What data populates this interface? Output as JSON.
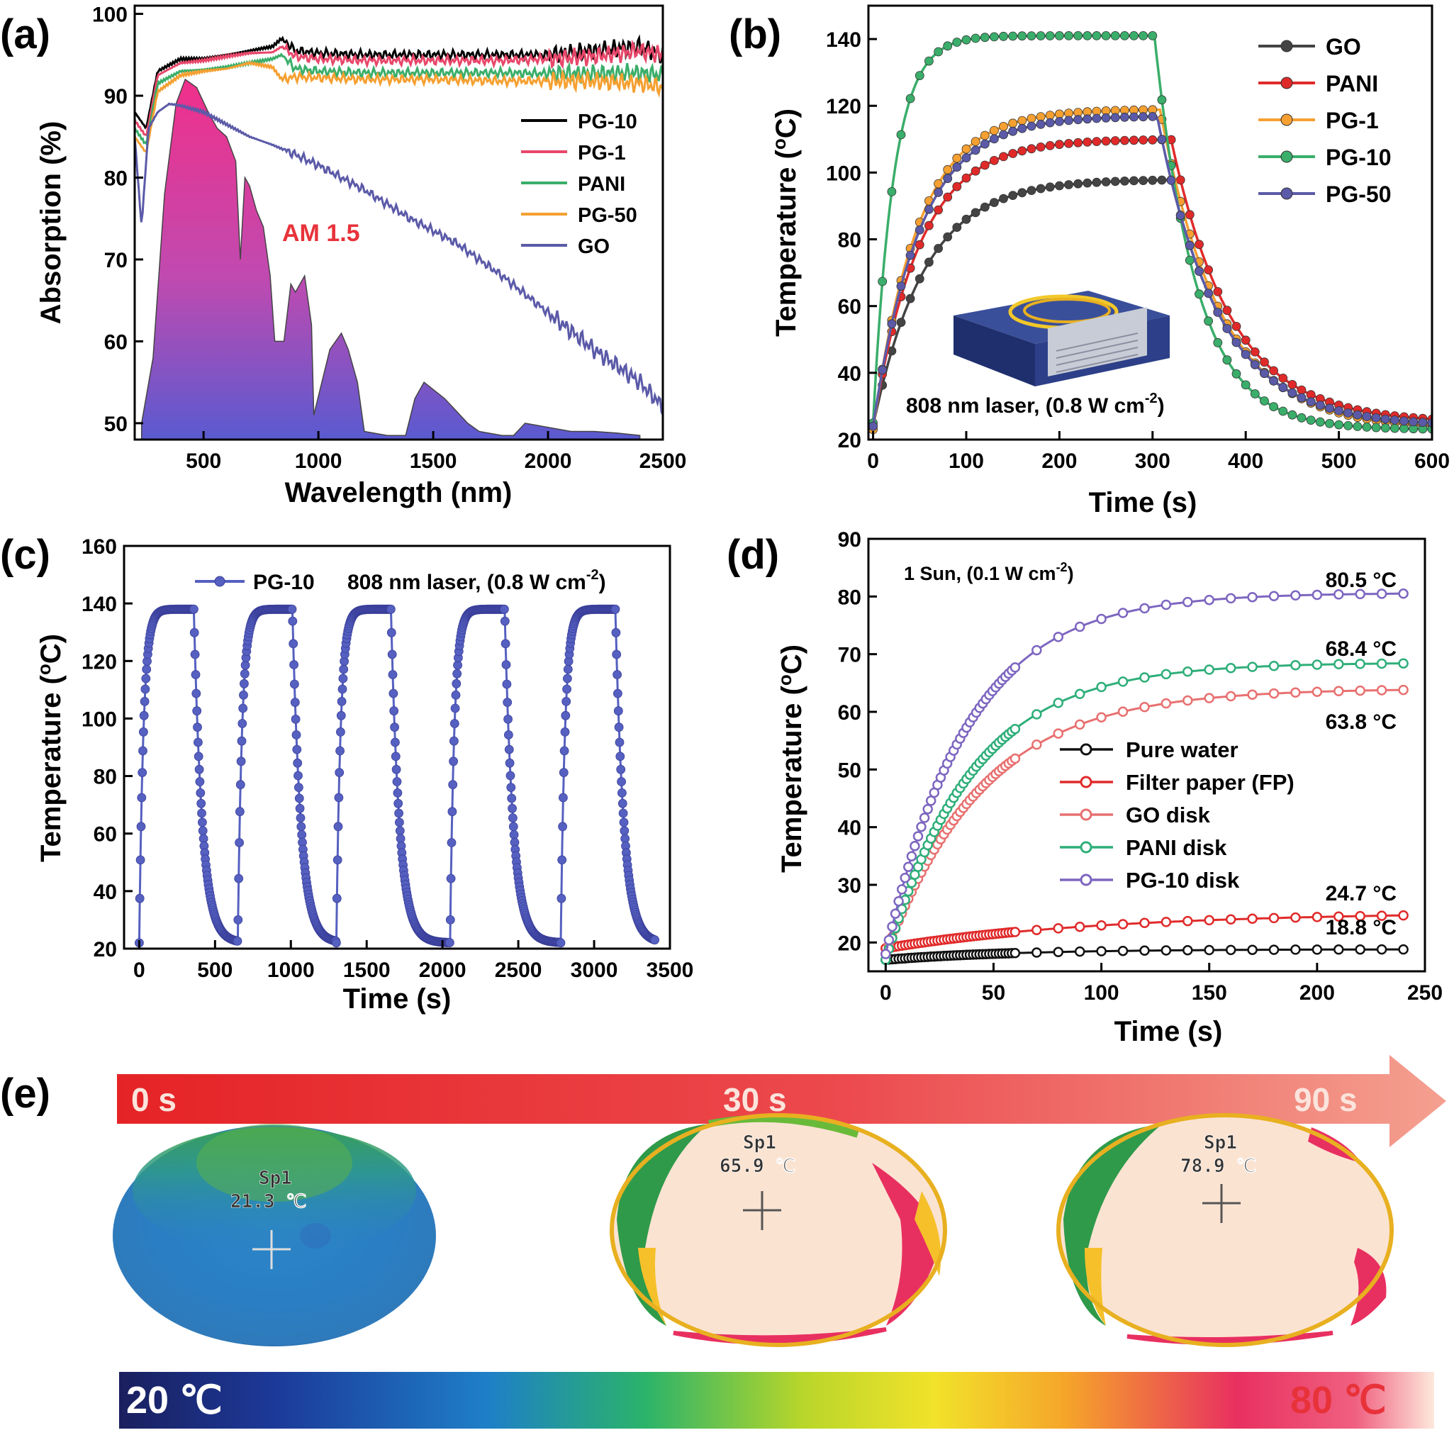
{
  "panels": {
    "a": {
      "label": "(a)"
    },
    "b": {
      "label": "(b)"
    },
    "c": {
      "label": "(c)"
    },
    "d": {
      "label": "(d)"
    },
    "e": {
      "label": "(e)"
    }
  },
  "chart_data": [
    {
      "id": "a",
      "type": "line",
      "xlabel": "Wavelength (nm)",
      "ylabel": "Absorption (%)",
      "xlim": [
        200,
        2500
      ],
      "ylim": [
        48,
        101
      ],
      "xticks": [
        500,
        1000,
        1500,
        2000,
        2500
      ],
      "yticks": [
        50,
        60,
        70,
        80,
        90,
        100
      ],
      "annotation": "AM 1.5",
      "legend_position": "right",
      "series": [
        {
          "name": "PG-10",
          "color": "#000000",
          "x": [
            200,
            250,
            300,
            400,
            500,
            600,
            700,
            800,
            840,
            900,
            1000,
            1200,
            1500,
            1800,
            2000,
            2200,
            2400,
            2500
          ],
          "y": [
            88,
            86,
            93,
            94.5,
            94.5,
            95,
            95.5,
            96,
            97,
            95.5,
            95.2,
            95.0,
            95.0,
            95.0,
            95.0,
            95.5,
            96,
            95
          ]
        },
        {
          "name": "PG-1",
          "color": "#e8476a",
          "x": [
            200,
            250,
            300,
            400,
            500,
            600,
            700,
            800,
            840,
            900,
            1000,
            1200,
            1500,
            1800,
            2000,
            2200,
            2400,
            2500
          ],
          "y": [
            87,
            85,
            92.5,
            94,
            94.3,
            94.8,
            95.2,
            95.3,
            96,
            94.8,
            94.5,
            94.3,
            94.3,
            94.3,
            94.5,
            94.8,
            95.5,
            95
          ]
        },
        {
          "name": "PANI",
          "color": "#3aae6a",
          "x": [
            200,
            250,
            300,
            400,
            500,
            600,
            700,
            800,
            840,
            900,
            1000,
            1200,
            1500,
            1800,
            2000,
            2200,
            2400,
            2500
          ],
          "y": [
            86,
            84,
            91.5,
            93,
            93.2,
            93.5,
            94,
            94.5,
            95,
            93.3,
            93,
            92.8,
            92.8,
            92.8,
            92.7,
            92.7,
            92.8,
            92.5
          ]
        },
        {
          "name": "PG-50",
          "color": "#f5a031",
          "x": [
            200,
            250,
            300,
            400,
            500,
            600,
            700,
            800,
            840,
            900,
            1000,
            1200,
            1500,
            1800,
            2000,
            2200,
            2400,
            2500
          ],
          "y": [
            85,
            83,
            90.5,
            92.5,
            93,
            93.3,
            94,
            93.5,
            92,
            92.3,
            92.2,
            92,
            92,
            91.8,
            91.8,
            91.8,
            91.5,
            91
          ]
        },
        {
          "name": "GO",
          "color": "#5b5aa8",
          "x": [
            200,
            230,
            260,
            300,
            350,
            400,
            500,
            600,
            700,
            800,
            900,
            1000,
            1200,
            1400,
            1600,
            1800,
            2000,
            2200,
            2400,
            2500
          ],
          "y": [
            85,
            74,
            86,
            88,
            89,
            88.8,
            88,
            86.5,
            85,
            84,
            82.8,
            81.5,
            78.5,
            75,
            72,
            68,
            63.5,
            59,
            55,
            52
          ]
        }
      ],
      "am15": {
        "x": [
          230,
          280,
          330,
          380,
          420,
          470,
          520,
          560,
          600,
          640,
          660,
          680,
          700,
          730,
          760,
          790,
          810,
          850,
          880,
          900,
          940,
          970,
          980,
          1050,
          1100,
          1130,
          1170,
          1200,
          1300,
          1380,
          1420,
          1460,
          1550,
          1650,
          1700,
          1800,
          1850,
          1900,
          2000,
          2100,
          2200,
          2300,
          2400
        ],
        "y": [
          50,
          58,
          78,
          89,
          92,
          91,
          88,
          86,
          85,
          82,
          70,
          80,
          79,
          76,
          74,
          68,
          60,
          60,
          67,
          66,
          68,
          62,
          51,
          59,
          61,
          59,
          55,
          49,
          48.5,
          48.5,
          53,
          55,
          53,
          50,
          49,
          48.5,
          48.5,
          50,
          49.5,
          49,
          49,
          48.8,
          48.5
        ]
      }
    },
    {
      "id": "b",
      "type": "line",
      "xlabel": "Time (s)",
      "ylabel": "Temperature (°C)",
      "xlim": [
        -5,
        600
      ],
      "ylim": [
        20,
        150
      ],
      "xticks": [
        0,
        100,
        200,
        300,
        400,
        500,
        600
      ],
      "yticks": [
        20,
        40,
        60,
        80,
        100,
        120,
        140
      ],
      "annotation": "808 nm laser, (0.8 W cm",
      "annotation_sup": "-2",
      "annotation_end": ")",
      "legend_position": "top-right",
      "series": [
        {
          "name": "GO",
          "color": "#444444",
          "base": 24,
          "max": 98,
          "tau": 55,
          "off": 320,
          "end": 24
        },
        {
          "name": "PANI",
          "color": "#e02a2a",
          "base": 24,
          "max": 110,
          "tau": 50,
          "off": 320,
          "end": 25
        },
        {
          "name": "PG-1",
          "color": "#f5a031",
          "base": 23,
          "max": 119,
          "tau": 48,
          "off": 308,
          "end": 23
        },
        {
          "name": "PG-10",
          "color": "#3aae6a",
          "base": 25,
          "max": 141,
          "tau": 22,
          "off": 302,
          "end": 23
        },
        {
          "name": "PG-50",
          "color": "#5b5aa8",
          "base": 24,
          "max": 117,
          "tau": 50,
          "off": 305,
          "end": 24
        }
      ]
    },
    {
      "id": "c",
      "type": "line",
      "xlabel": "Time (s)",
      "ylabel": "Temperature (°C)",
      "xlim": [
        -100,
        3500
      ],
      "ylim": [
        20,
        160
      ],
      "xticks": [
        0,
        500,
        1000,
        1500,
        2000,
        2500,
        3000,
        3500
      ],
      "yticks": [
        20,
        40,
        60,
        80,
        100,
        120,
        140,
        160
      ],
      "legend_position": "top",
      "series": [
        {
          "name": "PG-10",
          "color": "#5560c0",
          "cycle_starts": [
            0,
            650,
            1300,
            2050,
            2780
          ],
          "on_duration": 360,
          "peak": 138,
          "base": 22
        }
      ],
      "annotation": "808 nm laser, (0.8 W cm",
      "annotation_sup": "-2",
      "annotation_end": ")"
    },
    {
      "id": "d",
      "type": "line",
      "xlabel": "Time (s)",
      "ylabel": "Temperature (°C)",
      "xlim": [
        -8,
        250
      ],
      "ylim": [
        15,
        90
      ],
      "xticks": [
        0,
        50,
        100,
        150,
        200,
        250
      ],
      "yticks": [
        20,
        30,
        40,
        50,
        60,
        70,
        80,
        90
      ],
      "annotation": "1 Sun, (0.1 W cm",
      "annotation_sup": "-2",
      "annotation_end": ")",
      "legend_position": "center-right",
      "series": [
        {
          "name": "Pure water",
          "color": "#111111",
          "start": 17,
          "max": 18.8,
          "tau": 60,
          "end_label": "18.8 °C"
        },
        {
          "name": "Filter paper (FP)",
          "color": "#e02a2a",
          "start": 19,
          "max": 24.7,
          "tau": 100,
          "end_label": "24.7 °C"
        },
        {
          "name": "GO disk",
          "color": "#e87070",
          "start": 18,
          "max": 63.8,
          "tau": 45,
          "end_label": "63.8 °C"
        },
        {
          "name": "PANI disk",
          "color": "#2fae7a",
          "start": 17,
          "max": 68.4,
          "tau": 40,
          "end_label": "68.4 °C"
        },
        {
          "name": "PG-10 disk",
          "color": "#7d66c0",
          "start": 18,
          "max": 80.5,
          "tau": 38,
          "end_label": "80.5 °C"
        }
      ]
    }
  ],
  "panel_e": {
    "time_labels": [
      "0 s",
      "30 s",
      "90 s"
    ],
    "thermal_images": [
      {
        "spot": "Sp1",
        "temp": "21.3 ℃"
      },
      {
        "spot": "Sp1",
        "temp": "65.9 ℃"
      },
      {
        "spot": "Sp1",
        "temp": "78.9 ℃"
      }
    ],
    "scale_min": "20 ℃",
    "scale_max": "80 ℃"
  }
}
